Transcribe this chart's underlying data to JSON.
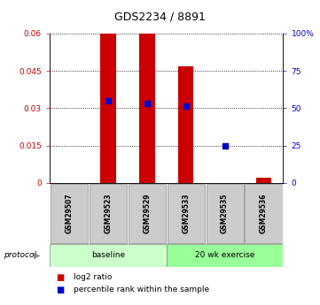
{
  "title": "GDS2234 / 8891",
  "samples": [
    "GSM29507",
    "GSM29523",
    "GSM29529",
    "GSM29533",
    "GSM29535",
    "GSM29536"
  ],
  "log2_ratio": [
    0.0,
    0.06,
    0.06,
    0.047,
    0.0,
    0.002
  ],
  "percentile_rank_left": [
    0.0,
    0.033,
    0.032,
    0.031,
    0.015,
    0.0
  ],
  "ylim_left": [
    0,
    0.06
  ],
  "ylim_right": [
    0,
    100
  ],
  "yticks_left": [
    0,
    0.015,
    0.03,
    0.045,
    0.06
  ],
  "yticks_right": [
    0,
    25,
    50,
    75,
    100
  ],
  "ytick_labels_right": [
    "0",
    "25",
    "50",
    "75",
    "100%"
  ],
  "bar_color": "#cc0000",
  "dot_color": "#0000cc",
  "bar_width": 0.4,
  "background_color": "#ffffff",
  "left_tick_color": "#cc0000",
  "right_tick_color": "#0000cc",
  "legend_labels": [
    "log2 ratio",
    "percentile rank within the sample"
  ],
  "legend_colors": [
    "#cc0000",
    "#0000cc"
  ],
  "protocol_label": "protocol",
  "protocol_groups": [
    {
      "label": "baseline",
      "color": "#ccffcc",
      "xstart": -0.5,
      "xend": 2.5
    },
    {
      "label": "20 wk exercise",
      "color": "#99ff99",
      "xstart": 2.5,
      "xend": 5.5
    }
  ],
  "sample_box_color": "#cccccc",
  "title_fontsize": 9,
  "tick_fontsize": 6.5,
  "sample_fontsize": 5.5,
  "protocol_fontsize": 6.5,
  "legend_fontsize": 6.5
}
